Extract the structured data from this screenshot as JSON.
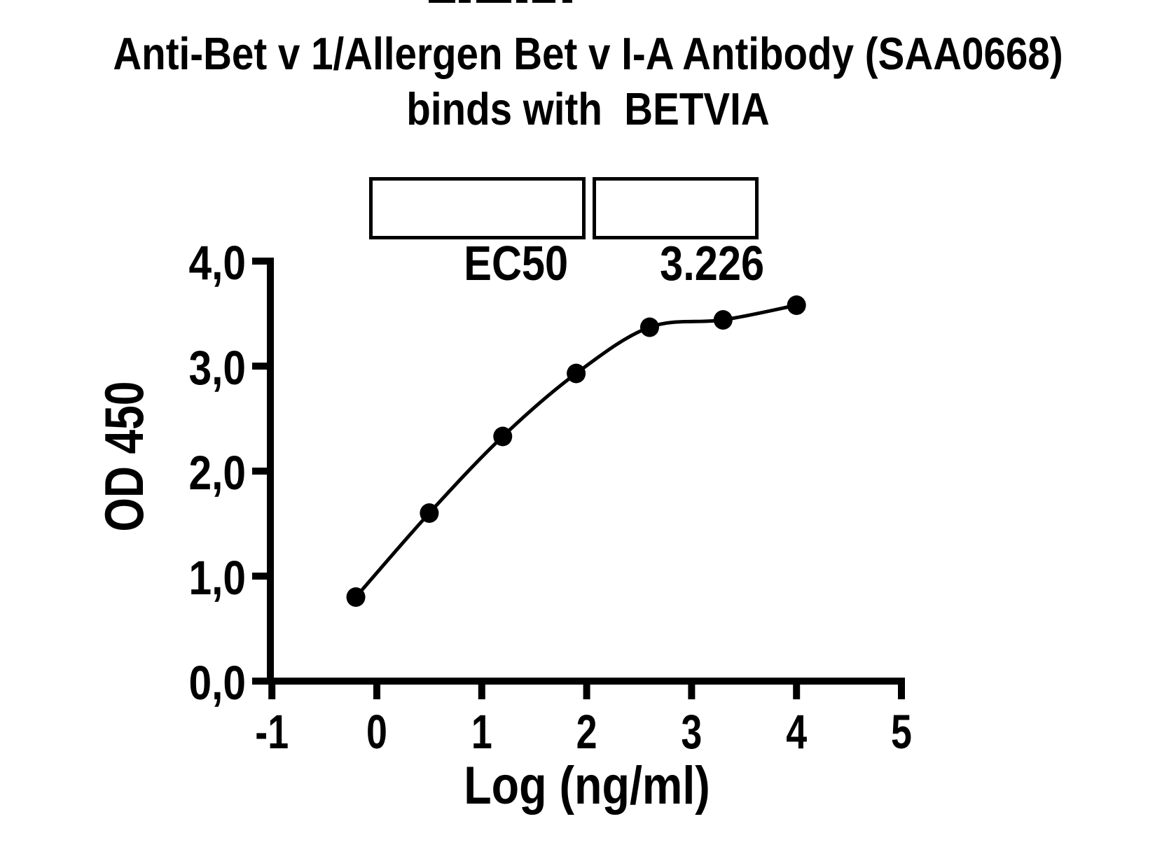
{
  "title": {
    "line1": "Anti-Bet v 1/Allergen Bet v I-A Antibody (SAA0668)",
    "line2": "binds with  BETVIA"
  },
  "ec50_table": {
    "label": "EC50",
    "value": "3.226"
  },
  "chart_data": {
    "type": "scatter",
    "title": "Anti-Bet v 1/Allergen Bet v I-A Antibody (SAA0668) binds with BETVIA",
    "xlabel": "Log (ng/ml)",
    "ylabel": "OD 450",
    "xlim": [
      -1,
      5
    ],
    "ylim": [
      0,
      4
    ],
    "grid": false,
    "legend": "none",
    "ec50": 3.226,
    "xticks": {
      "values": [
        -1,
        0,
        1,
        2,
        3,
        4,
        5
      ],
      "labels": [
        "-1",
        "0",
        "1",
        "2",
        "3",
        "4",
        "5"
      ]
    },
    "yticks": {
      "values": [
        0,
        1,
        2,
        3,
        4
      ],
      "labels": [
        "0,0",
        "1,0",
        "2,0",
        "3,0",
        "4,0"
      ]
    },
    "series": [
      {
        "name": "SAA0668 binds BETVIA",
        "marker": "filled-circle",
        "line": "smooth-fit-curve",
        "points": [
          {
            "x": -0.2,
            "y": 0.8
          },
          {
            "x": 0.5,
            "y": 1.6
          },
          {
            "x": 1.2,
            "y": 2.33
          },
          {
            "x": 1.9,
            "y": 2.93
          },
          {
            "x": 2.6,
            "y": 3.37
          },
          {
            "x": 3.3,
            "y": 3.44
          },
          {
            "x": 4.0,
            "y": 3.58
          }
        ]
      }
    ],
    "colors": {
      "foreground": "#000000",
      "background": "#ffffff"
    }
  }
}
